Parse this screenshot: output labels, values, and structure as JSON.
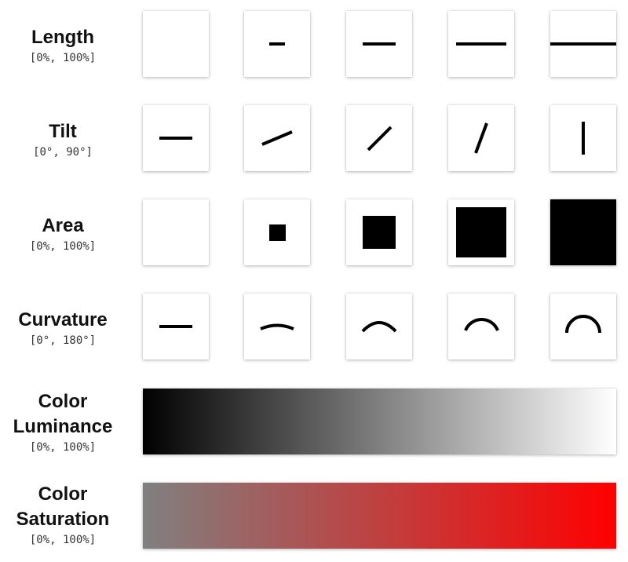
{
  "channels": [
    {
      "name": "Length",
      "range": "[0%, 100%]",
      "levels": [
        0,
        25,
        50,
        75,
        100
      ]
    },
    {
      "name": "Tilt",
      "range": "[0°, 90°]",
      "levels_deg": [
        0,
        22.5,
        45,
        67.5,
        90
      ]
    },
    {
      "name": "Area",
      "range": "[0%, 100%]",
      "levels": [
        0,
        6.25,
        25,
        56.25,
        100
      ]
    },
    {
      "name": "Curvature",
      "range": "[0°, 180°]",
      "levels_deg": [
        0,
        45,
        90,
        135,
        180
      ]
    }
  ],
  "gradients": [
    {
      "name_line1": "Color",
      "name_line2": "Luminance",
      "range": "[0%, 100%]",
      "from": "#000000",
      "to": "#ffffff"
    },
    {
      "name_line1": "Color",
      "name_line2": "Saturation",
      "range": "[0%, 100%]",
      "from": "#808080",
      "to": "#ff0000"
    }
  ],
  "colors": {
    "mark": "#000000",
    "tile_background": "#ffffff"
  }
}
